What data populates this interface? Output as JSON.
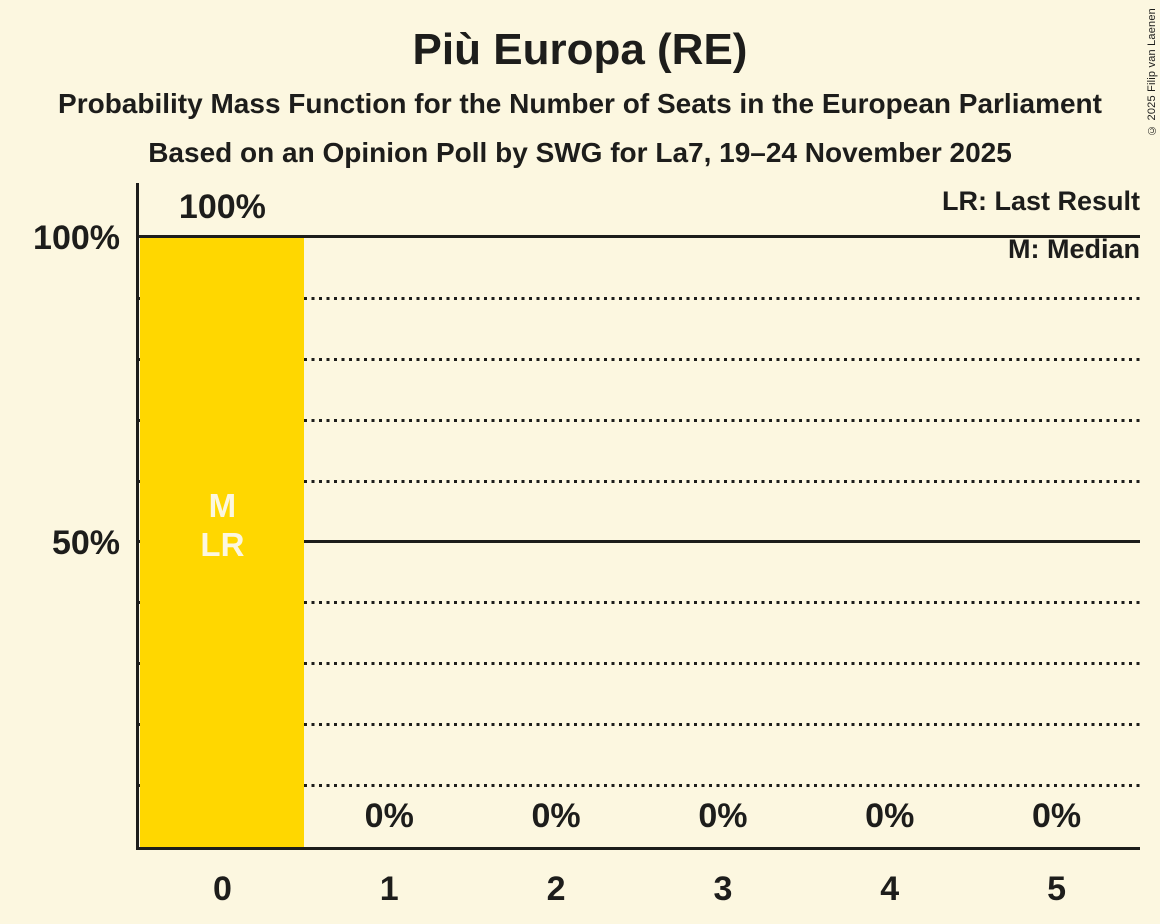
{
  "header": {
    "title": "Più Europa (RE)",
    "subtitle1": "Probability Mass Function for the Number of Seats in the European Parliament",
    "subtitle2": "Based on an Opinion Poll by SWG for La7, 19–24 November 2025"
  },
  "copyright": "© 2025 Filip van Laenen",
  "legend": {
    "last_result": "LR: Last Result",
    "median": "M: Median"
  },
  "colors": {
    "background": "#FCF7E0",
    "bar": "#FFD700",
    "text": "#1D1D1B",
    "bar_annotation_text": "#FCF7E0"
  },
  "chart_data": {
    "type": "bar",
    "title": "Più Europa (RE)",
    "categories": [
      "0",
      "1",
      "2",
      "3",
      "4",
      "5"
    ],
    "values": [
      100,
      0,
      0,
      0,
      0,
      0
    ],
    "value_labels": [
      "100%",
      "0%",
      "0%",
      "0%",
      "0%",
      "0%"
    ],
    "ylim": [
      0,
      100
    ],
    "yticks": [
      {
        "value": 100,
        "label": "100%"
      },
      {
        "value": 50,
        "label": "50%"
      }
    ],
    "gridlines": {
      "solid": [
        100,
        50
      ],
      "dotted": [
        90,
        80,
        70,
        60,
        40,
        30,
        20,
        10
      ]
    },
    "annotations": {
      "median_category": "0",
      "last_result_category": "0",
      "in_bar_lines": [
        "M",
        "LR"
      ]
    },
    "legend_position": "top-right",
    "grid": "horizontal-dotted"
  }
}
